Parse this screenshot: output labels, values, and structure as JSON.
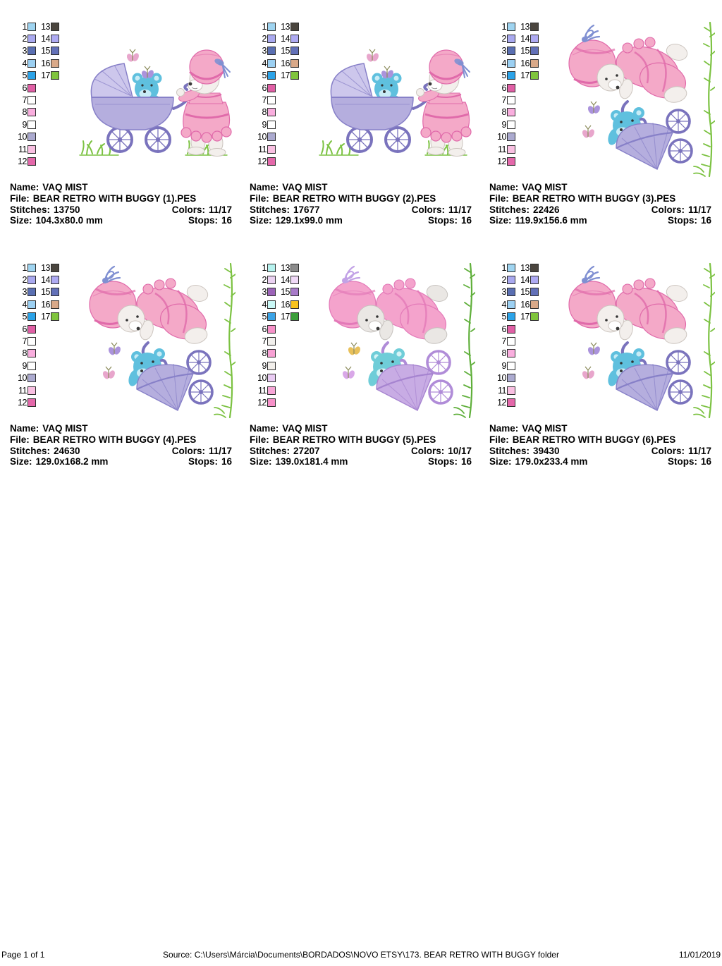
{
  "labels": {
    "name": "Name:",
    "file": "File:",
    "stitches": "Stitches:",
    "colors": "Colors:",
    "size": "Size:",
    "stops": "Stops:"
  },
  "panels": [
    {
      "name": "VAQ MIST",
      "file": "BEAR RETRO WITH BUGGY (1).PES",
      "stitches": "13750",
      "colors": "11/17",
      "size": "104.3x80.0 mm",
      "stops": "16",
      "palette": "standard",
      "scene": "walk",
      "tone": "standard"
    },
    {
      "name": "VAQ MIST",
      "file": "BEAR RETRO WITH BUGGY (2).PES",
      "stitches": "17677",
      "colors": "11/17",
      "size": "129.1x99.0 mm",
      "stops": "16",
      "palette": "standard",
      "scene": "walk",
      "tone": "standard"
    },
    {
      "name": "VAQ MIST",
      "file": "BEAR RETRO WITH BUGGY (3).PES",
      "stitches": "22426",
      "colors": "11/17",
      "size": "119.9x156.6 mm",
      "stops": "16",
      "palette": "standard",
      "scene": "lean",
      "tone": "standard"
    },
    {
      "name": "VAQ MIST",
      "file": "BEAR RETRO WITH BUGGY (4).PES",
      "stitches": "24630",
      "colors": "11/17",
      "size": "129.0x168.2 mm",
      "stops": "16",
      "palette": "standard",
      "scene": "lean",
      "tone": "standard"
    },
    {
      "name": "VAQ MIST",
      "file": "BEAR RETRO WITH BUGGY (5).PES",
      "stitches": "27207",
      "colors": "10/17",
      "size": "139.0x181.4 mm",
      "stops": "16",
      "palette": "alt",
      "scene": "lean",
      "tone": "soft"
    },
    {
      "name": "VAQ MIST",
      "file": "BEAR RETRO WITH BUGGY (6).PES",
      "stitches": "39430",
      "colors": "11/17",
      "size": "179.0x233.4 mm",
      "stops": "16",
      "palette": "standard",
      "scene": "lean",
      "tone": "standard"
    }
  ],
  "palettes": {
    "standard": {
      "left": [
        {
          "n": "1",
          "c": "#9fd4f0"
        },
        {
          "n": "2",
          "c": "#a9a9ef"
        },
        {
          "n": "3",
          "c": "#5a6fb2"
        },
        {
          "n": "4",
          "c": "#9cd0f2"
        },
        {
          "n": "5",
          "c": "#2ba3e8"
        },
        {
          "n": "6",
          "c": "#e05fa5"
        },
        {
          "n": "7",
          "c": "#ffffff"
        },
        {
          "n": "8",
          "c": "#f9aede"
        },
        {
          "n": "9",
          "c": "#ffffff"
        },
        {
          "n": "10",
          "c": "#abaacf"
        },
        {
          "n": "11",
          "c": "#f9c0e2"
        },
        {
          "n": "12",
          "c": "#e468aa"
        }
      ],
      "right": [
        {
          "n": "13",
          "c": "#4a453e"
        },
        {
          "n": "14",
          "c": "#aeaaf2"
        },
        {
          "n": "15",
          "c": "#6270b8"
        },
        {
          "n": "16",
          "c": "#d9a989"
        },
        {
          "n": "17",
          "c": "#7fc43c"
        }
      ]
    },
    "alt": {
      "left": [
        {
          "n": "1",
          "c": "#b6f2ee"
        },
        {
          "n": "2",
          "c": "#ebd2f2"
        },
        {
          "n": "3",
          "c": "#9c63b8"
        },
        {
          "n": "4",
          "c": "#c9f8f6"
        },
        {
          "n": "5",
          "c": "#3ba3e6"
        },
        {
          "n": "6",
          "c": "#f791c9"
        },
        {
          "n": "7",
          "c": "#f2f0ed"
        },
        {
          "n": "8",
          "c": "#f7a1d4"
        },
        {
          "n": "9",
          "c": "#f2efeb"
        },
        {
          "n": "10",
          "c": "#e9cbf3"
        },
        {
          "n": "11",
          "c": "#f7a6d7"
        },
        {
          "n": "12",
          "c": "#f791c9"
        }
      ],
      "right": [
        {
          "n": "13",
          "c": "#8b8b8b"
        },
        {
          "n": "14",
          "c": "#f0d9f7"
        },
        {
          "n": "15",
          "c": "#a87bc9"
        },
        {
          "n": "16",
          "c": "#f8c31d"
        },
        {
          "n": "17",
          "c": "#3b9e39"
        }
      ]
    }
  },
  "scene_colors": {
    "standard": {
      "bear": "#f3efec",
      "bearline": "#ccc5bf",
      "pink": "#f4a9c8",
      "pinkdark": "#e06aaa",
      "pram": "#b5aede",
      "pramlight": "#cdc7ec",
      "pramdark": "#8780c8",
      "wheel": "#7a73bd",
      "baby": "#5fc0de",
      "babylight": "#c8ecf6",
      "ribbon": "#8090d2",
      "grass": "#7cc242",
      "bfly1": "#e8a6cc",
      "bfly2": "#ab93dc"
    },
    "soft": {
      "bear": "#eae7e4",
      "bearline": "#c6c2be",
      "pink": "#f4a3cc",
      "pinkdark": "#e379b8",
      "pram": "#c8ace4",
      "pramlight": "#ddc9f0",
      "pramdark": "#a684d0",
      "wheel": "#b08cd8",
      "baby": "#6fcdd8",
      "babylight": "#d6f4f6",
      "ribbon": "#c2a2e6",
      "grass": "#5faf3a",
      "bfly1": "#d9a8e8",
      "bfly2": "#e8c05a"
    }
  },
  "footer": {
    "page_label": "Page 1 of 1",
    "source": "Source:  C:\\Users\\Márcia\\Documents\\BORDADOS\\NOVO ETSY\\173. BEAR RETRO WITH BUGGY folder",
    "date": "11/01/2019"
  }
}
